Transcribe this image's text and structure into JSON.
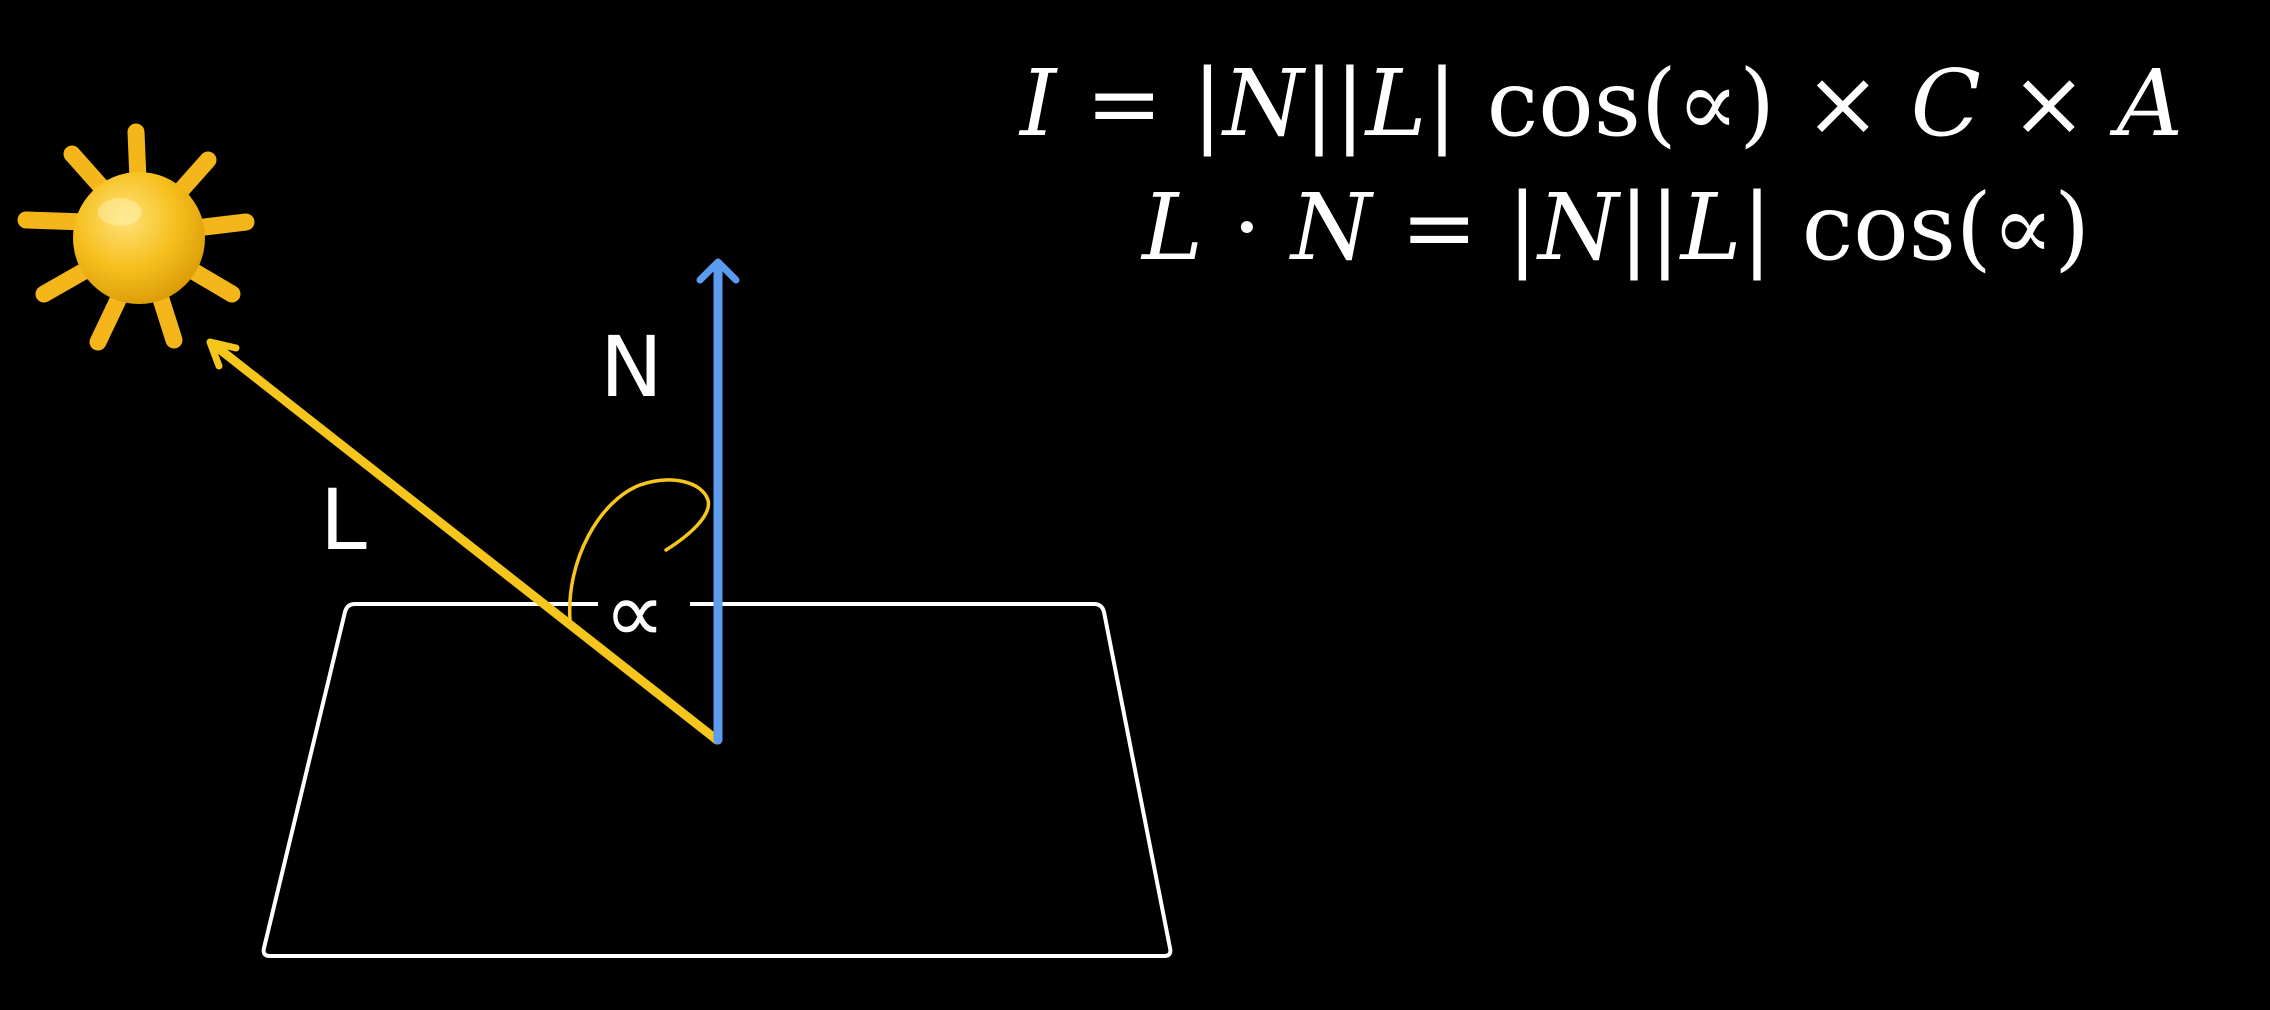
{
  "diagram": {
    "vectors": {
      "normal_label": "N",
      "light_label": "L",
      "angle_label": "∝"
    },
    "formulas": {
      "intensity": {
        "lhs": "I",
        "eq": "=",
        "n": "N",
        "l": "L",
        "cos": "cos(∝)",
        "times1": "×",
        "c": "C",
        "times2": "×",
        "a": "A"
      },
      "dot_product": {
        "l": "L",
        "dot": "·",
        "n1": "N",
        "eq": "=",
        "n2": "N",
        "l2": "L",
        "cos": "cos(∝)"
      }
    },
    "icons": {
      "light_source": "sun-icon"
    },
    "colors": {
      "background": "#000000",
      "normal_vector": "#5b9cf0",
      "light_vector": "#f7c61c",
      "surface_outline": "#ffffff",
      "sun": "#f6bf1d",
      "text": "#ffffff"
    }
  }
}
